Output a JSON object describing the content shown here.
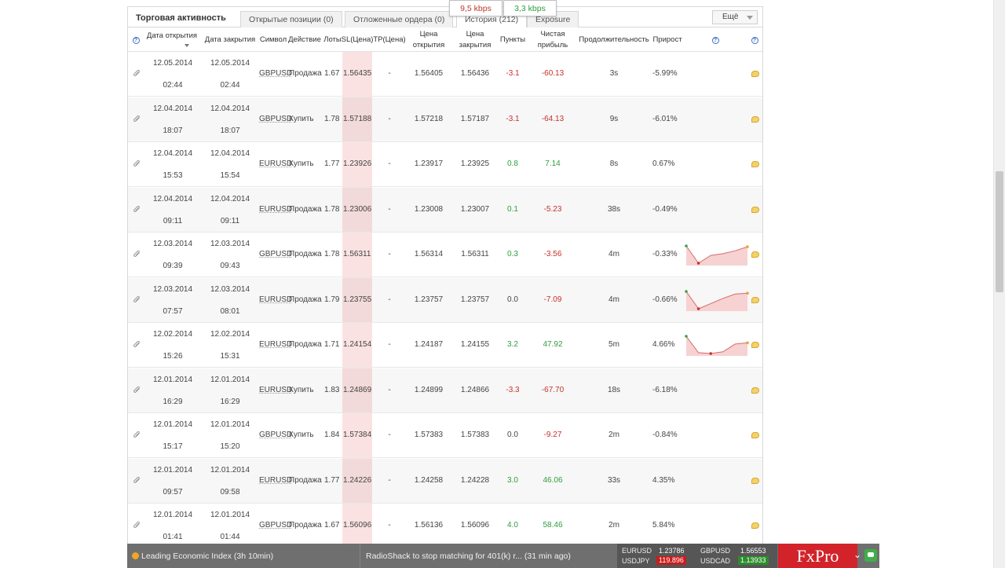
{
  "tabs": {
    "title": "Торговая активность",
    "items": [
      {
        "label": "Открытые позиции (0)"
      },
      {
        "label": "Отложенные ордера (0)"
      },
      {
        "label": "История (212)"
      },
      {
        "label": "Exposure"
      }
    ],
    "more_label": "Ещё"
  },
  "kbps": {
    "down": "9,5 kbps",
    "up": "3,3 kbps"
  },
  "columns": {
    "open_date": "Дата открытия",
    "close_date": "Дата закрытия",
    "symbol": "Символ",
    "action": "Действие",
    "lots": "Лоты",
    "sl": "SL(Цена)",
    "tp": "TP(Цена)",
    "open_price": "Цена открытия",
    "close_price": "Цена закрытия",
    "points": "Пункты",
    "net_profit": "Чистая прибыль",
    "duration": "Продолжительность",
    "gain": "Прирост"
  },
  "rows": [
    {
      "open_date": "12.05.2014",
      "open_time": "02:44",
      "close_date": "12.05.2014",
      "close_time": "02:44",
      "symbol": "GBPUSD",
      "action": "Продажа",
      "lots": "1.67",
      "sl": "1.56435",
      "tp": "-",
      "open_price": "1.56405",
      "close_price": "1.56436",
      "points": "-3.1",
      "profit": "-60.13",
      "duration": "3s",
      "gain": "-5.99%",
      "spark": null
    },
    {
      "open_date": "12.04.2014",
      "open_time": "18:07",
      "close_date": "12.04.2014",
      "close_time": "18:07",
      "symbol": "GBPUSD",
      "action": "Купить",
      "lots": "1.78",
      "sl": "1.57188",
      "tp": "-",
      "open_price": "1.57218",
      "close_price": "1.57187",
      "points": "-3.1",
      "profit": "-64.13",
      "duration": "9s",
      "gain": "-6.01%",
      "spark": null
    },
    {
      "open_date": "12.04.2014",
      "open_time": "15:53",
      "close_date": "12.04.2014",
      "close_time": "15:54",
      "symbol": "EURUSD",
      "action": "Купить",
      "lots": "1.77",
      "sl": "1.23926",
      "tp": "-",
      "open_price": "1.23917",
      "close_price": "1.23925",
      "points": "0.8",
      "profit": "7.14",
      "duration": "8s",
      "gain": "0.67%",
      "spark": null
    },
    {
      "open_date": "12.04.2014",
      "open_time": "09:11",
      "close_date": "12.04.2014",
      "close_time": "09:11",
      "symbol": "EURUSD",
      "action": "Продажа",
      "lots": "1.78",
      "sl": "1.23006",
      "tp": "-",
      "open_price": "1.23008",
      "close_price": "1.23007",
      "points": "0.1",
      "profit": "-5.23",
      "duration": "38s",
      "gain": "-0.49%",
      "spark": null
    },
    {
      "open_date": "12.03.2014",
      "open_time": "09:39",
      "close_date": "12.03.2014",
      "close_time": "09:43",
      "symbol": "GBPUSD",
      "action": "Продажа",
      "lots": "1.78",
      "sl": "1.56311",
      "tp": "-",
      "open_price": "1.56314",
      "close_price": "1.56311",
      "points": "0.3",
      "profit": "-3.56",
      "duration": "4m",
      "gain": "-0.33%",
      "spark": [
        1.0,
        0.0,
        0.45,
        0.55,
        0.72,
        0.95
      ]
    },
    {
      "open_date": "12.03.2014",
      "open_time": "07:57",
      "close_date": "12.03.2014",
      "close_time": "08:01",
      "symbol": "EURUSD",
      "action": "Продажа",
      "lots": "1.79",
      "sl": "1.23755",
      "tp": "-",
      "open_price": "1.23757",
      "close_price": "1.23757",
      "points": "0.0",
      "profit": "-7.09",
      "duration": "4m",
      "gain": "-0.66%",
      "spark": [
        1.0,
        0.0,
        0.3,
        0.6,
        0.85,
        0.9
      ]
    },
    {
      "open_date": "12.02.2014",
      "open_time": "15:26",
      "close_date": "12.02.2014",
      "close_time": "15:31",
      "symbol": "EURUSD",
      "action": "Продажа",
      "lots": "1.71",
      "sl": "1.24154",
      "tp": "-",
      "open_price": "1.24187",
      "close_price": "1.24155",
      "points": "3.2",
      "profit": "47.92",
      "duration": "5m",
      "gain": "4.66%",
      "spark": [
        1.0,
        0.05,
        0.0,
        0.1,
        0.55,
        0.62
      ]
    },
    {
      "open_date": "12.01.2014",
      "open_time": "16:29",
      "close_date": "12.01.2014",
      "close_time": "16:29",
      "symbol": "EURUSD",
      "action": "Купить",
      "lots": "1.83",
      "sl": "1.24869",
      "tp": "-",
      "open_price": "1.24899",
      "close_price": "1.24866",
      "points": "-3.3",
      "profit": "-67.70",
      "duration": "18s",
      "gain": "-6.18%",
      "spark": null
    },
    {
      "open_date": "12.01.2014",
      "open_time": "15:17",
      "close_date": "12.01.2014",
      "close_time": "15:20",
      "symbol": "GBPUSD",
      "action": "Купить",
      "lots": "1.84",
      "sl": "1.57384",
      "tp": "-",
      "open_price": "1.57383",
      "close_price": "1.57383",
      "points": "0.0",
      "profit": "-9.27",
      "duration": "2m",
      "gain": "-0.84%",
      "spark": null
    },
    {
      "open_date": "12.01.2014",
      "open_time": "09:57",
      "close_date": "12.01.2014",
      "close_time": "09:58",
      "symbol": "EURUSD",
      "action": "Продажа",
      "lots": "1.77",
      "sl": "1.24226",
      "tp": "-",
      "open_price": "1.24258",
      "close_price": "1.24228",
      "points": "3.0",
      "profit": "46.06",
      "duration": "33s",
      "gain": "4.35%",
      "spark": null
    },
    {
      "open_date": "12.01.2014",
      "open_time": "01:41",
      "close_date": "12.01.2014",
      "close_time": "01:44",
      "symbol": "GBPUSD",
      "action": "Продажа",
      "lots": "1.67",
      "sl": "1.56096",
      "tp": "-",
      "open_price": "1.56136",
      "close_price": "1.56096",
      "points": "4.0",
      "profit": "58.46",
      "duration": "2m",
      "gain": "5.84%",
      "spark": null
    }
  ],
  "ticker": {
    "news1": "Leading Economic Index (3h 10min)",
    "news2": "RadioShack to stop matching for 401(k) r...  (31 min ago)",
    "quotes": {
      "eurusd_label": "EURUSD",
      "eurusd_value": "1.23786",
      "gbpusd_label": "GBPUSD",
      "gbpusd_value": "1.56553",
      "usdjpy_label": "USDJPY",
      "usdjpy_value": "119.896",
      "usdcad_label": "USDCAD",
      "usdcad_value": "1.13933"
    },
    "logo": "FxPro",
    "chevron": "⌄"
  },
  "colors": {
    "positive": "#2e9e3e",
    "negative": "#c8302c",
    "sl_highlight": "#fbe2e2",
    "brand": "#d2232a"
  }
}
